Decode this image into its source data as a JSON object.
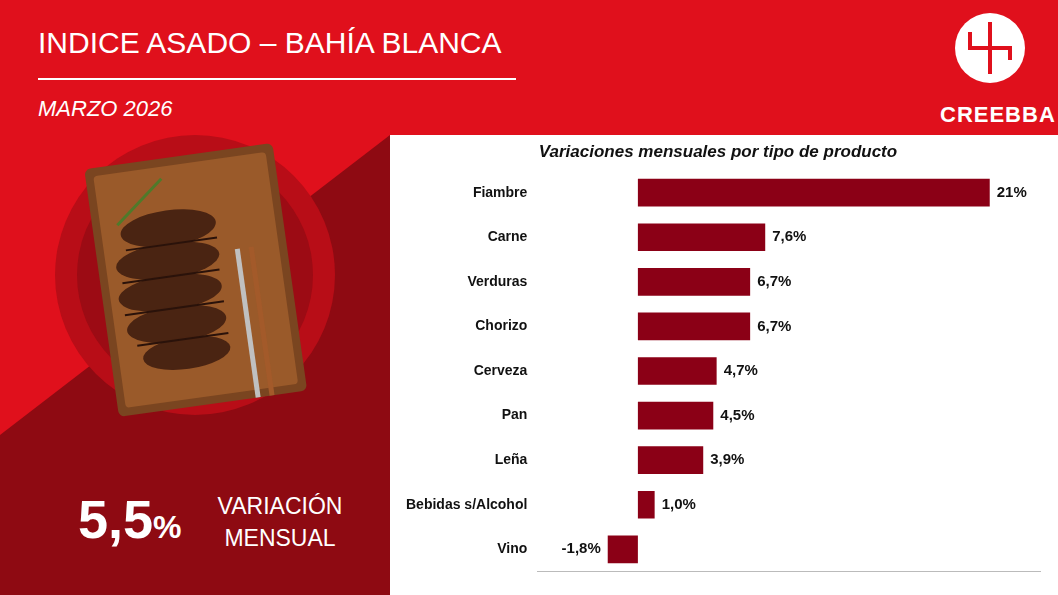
{
  "header": {
    "title": "INDICE ASADO – BAHÍA BLANCA",
    "subtitle": "MARZO 2026",
    "brand": "CREEBBA"
  },
  "summary": {
    "label": "5,5%",
    "caption": "VARIACIÓN MENSUAL"
  },
  "chart_data": {
    "type": "bar",
    "orientation": "horizontal",
    "title": "Variaciones mensuales por tipo de producto",
    "categories": [
      "Fiambre",
      "Carne",
      "Verduras",
      "Chorizo",
      "Cerveza",
      "Pan",
      "Leña",
      "Bebidas s/Alcohol",
      "Vino"
    ],
    "values": [
      21,
      7.6,
      6.7,
      6.7,
      4.7,
      4.5,
      3.9,
      1.0,
      -1.8
    ],
    "value_labels": [
      "21%",
      "7,6%",
      "6,7%",
      "6,7%",
      "4,7%",
      "4,5%",
      "3,9%",
      "1,0%",
      "-1,8%"
    ],
    "color": "#8b0016",
    "xlim": [
      -6,
      24
    ],
    "grid": false,
    "data_labels": true,
    "tick_labels": "y"
  }
}
